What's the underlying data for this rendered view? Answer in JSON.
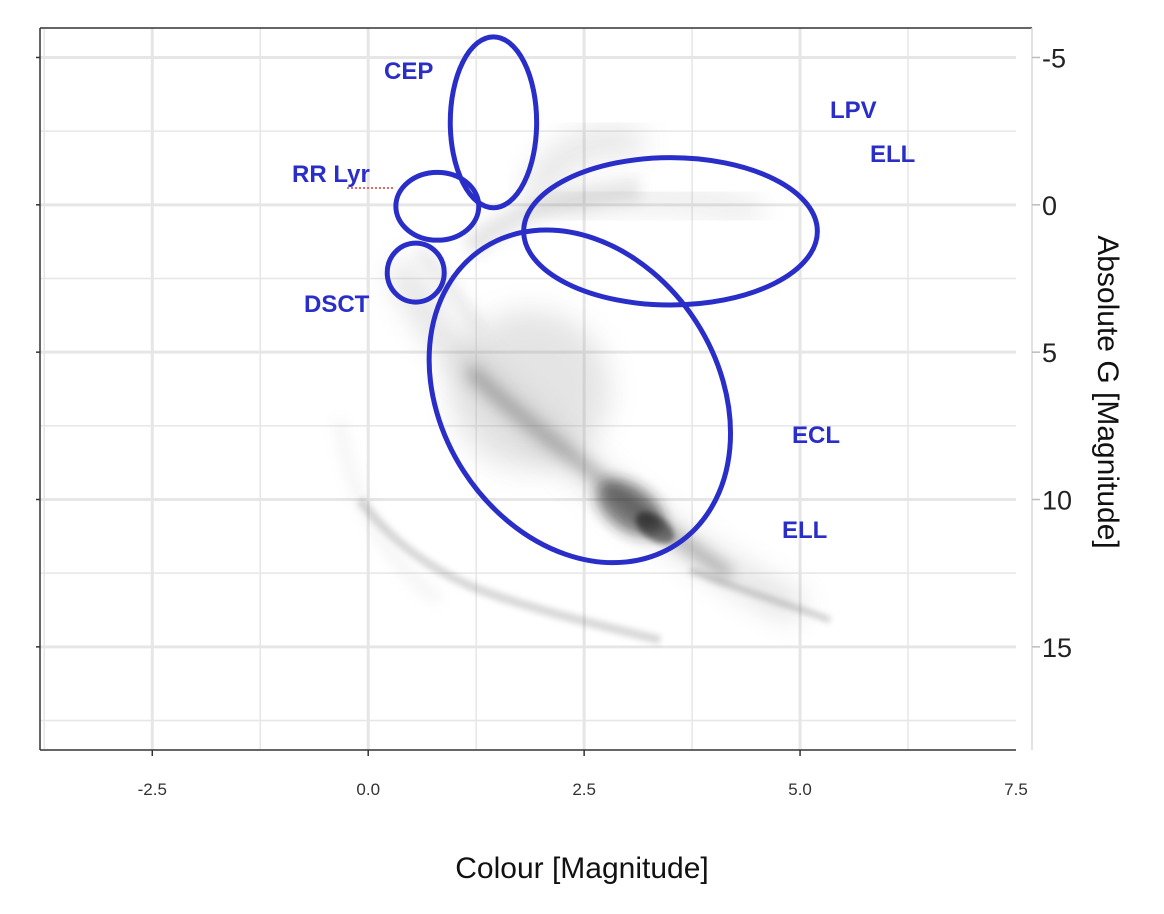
{
  "chart_data": {
    "type": "scatter",
    "title": "",
    "xlabel": "Colour [Magnitude]",
    "ylabel": "Absolute G [Magnitude]",
    "xlim": [
      -3.8,
      7.5
    ],
    "ylim": [
      18.5,
      -6
    ],
    "y_axis_side": "right",
    "y_inverted": true,
    "grid": true,
    "x_ticks": [
      -2.5,
      0.0,
      2.5,
      5.0,
      7.5
    ],
    "x_tick_labels": [
      "-2.5",
      "0.0",
      "2.5",
      "5.0",
      "7.5"
    ],
    "y_ticks": [
      -5,
      0,
      5,
      10,
      15
    ],
    "y_tick_labels": [
      "-5",
      "0",
      "5",
      "10",
      "15"
    ],
    "density_description": "grey point density of stars (main sequence and giant branch)",
    "regions": [
      {
        "label": "CEP",
        "center": [
          1.45,
          -2.8
        ],
        "radii": [
          0.5,
          2.9
        ]
      },
      {
        "label": "LPV ELL",
        "center": [
          3.5,
          0.9
        ],
        "radii": [
          1.7,
          2.5
        ]
      },
      {
        "label": "RR Lyr",
        "center": [
          0.8,
          0.05
        ],
        "radii": [
          0.48,
          1.15
        ]
      },
      {
        "label": "DSCT",
        "center": [
          0.55,
          2.3
        ],
        "radii": [
          0.33,
          1.0
        ]
      },
      {
        "label": "ECL ELL",
        "center": [
          2.45,
          6.5
        ],
        "radii": [
          1.6,
          6.0
        ]
      }
    ],
    "annotations": [
      "CEP",
      "LPV",
      "ELL",
      "RR Lyr",
      "DSCT",
      "ECL",
      "ELL"
    ],
    "colors": {
      "region": "#2a2ec8",
      "grid": "#e6e6e6",
      "density": "#555555"
    }
  }
}
